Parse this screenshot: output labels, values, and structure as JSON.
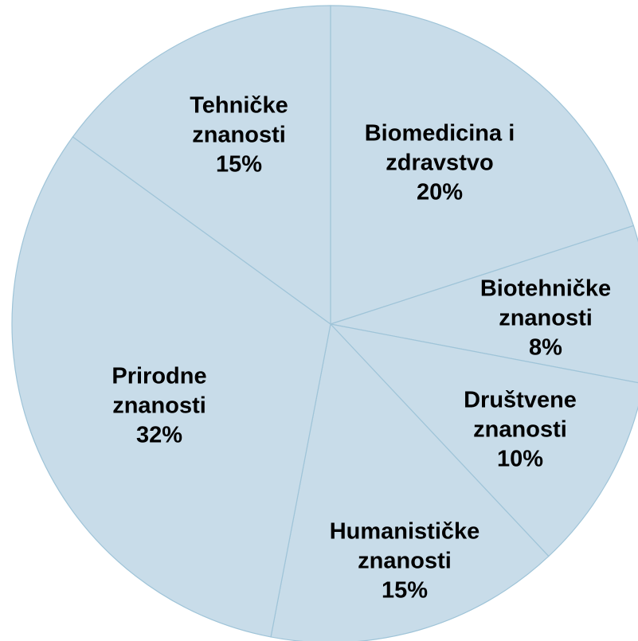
{
  "chart_data": {
    "type": "pie",
    "categories": [
      "Biomedicina i\nzdravstvo",
      "Biotehničke\nznanosti",
      "Društvene\nznanosti",
      "Humanističke\nznanosti",
      "Prirodne\nznanosti",
      "Tehničke\nznanosti"
    ],
    "values": [
      20,
      8,
      10,
      15,
      32,
      15
    ],
    "value_labels": [
      "20%",
      "8%",
      "10%",
      "15%",
      "32%",
      "15%"
    ],
    "color": "#c8dce9"
  }
}
